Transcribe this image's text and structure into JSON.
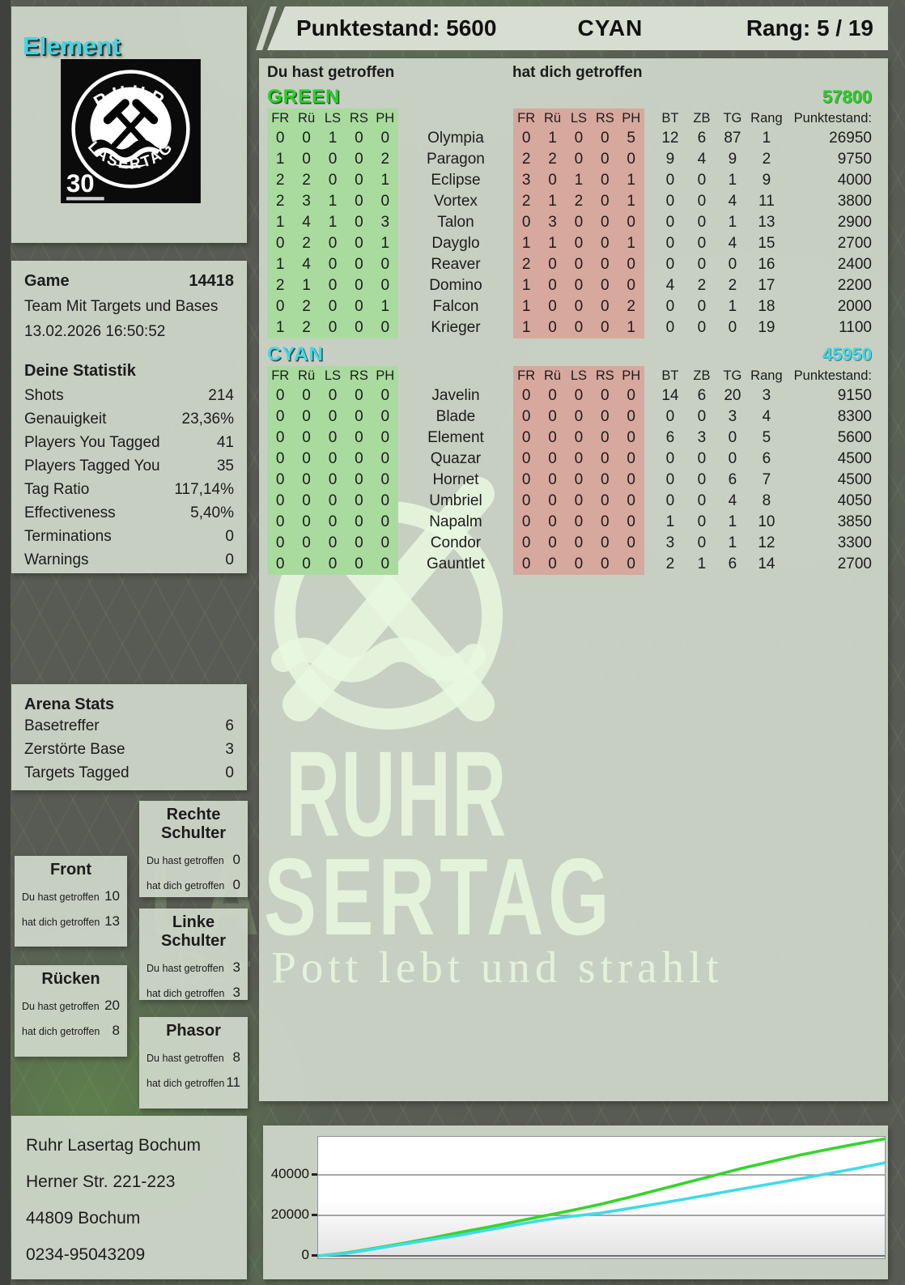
{
  "header": {
    "punktestand_label": "Punktestand:",
    "punktestand_value": "5600",
    "team": "CYAN",
    "rang_label": "Rang:",
    "rang_value": "5 / 19"
  },
  "sidebar": {
    "player_name": "Element",
    "logo": {
      "arc_top": "RUHR",
      "arc_bottom": "LASERTAG",
      "badge": "30"
    },
    "game": {
      "label": "Game",
      "number": "14418",
      "mode": "Team Mit Targets und Bases",
      "datetime": "13.02.2026 16:50:52"
    },
    "stats": {
      "title": "Deine Statistik",
      "rows": [
        {
          "label": "Shots",
          "value": "214"
        },
        {
          "label": "Genauigkeit",
          "value": "23,36%"
        },
        {
          "label": "Players You Tagged",
          "value": "41"
        },
        {
          "label": "Players Tagged You",
          "value": "35"
        },
        {
          "label": "Tag Ratio",
          "value": "117,14%"
        },
        {
          "label": "Effectiveness",
          "value": "5,40%"
        },
        {
          "label": "Terminations",
          "value": "0"
        },
        {
          "label": "Warnings",
          "value": "0"
        }
      ]
    },
    "arena": {
      "title": "Arena Stats",
      "rows": [
        {
          "label": "Basetreffer",
          "value": "6"
        },
        {
          "label": "Zerstörte Base",
          "value": "3"
        },
        {
          "label": "Targets Tagged",
          "value": "0"
        }
      ]
    },
    "body_hit_labels": {
      "you": "Du hast getroffen",
      "them": "hat dich getroffen"
    },
    "body_parts": [
      {
        "id": "front",
        "title": "Front",
        "you": "10",
        "them": "13"
      },
      {
        "id": "ruecken",
        "title": "Rücken",
        "you": "20",
        "them": "8"
      },
      {
        "id": "rechte-schulter",
        "title": "Rechte Schulter",
        "you": "0",
        "them": "0"
      },
      {
        "id": "linke-schulter",
        "title": "Linke Schulter",
        "you": "3",
        "them": "3"
      },
      {
        "id": "phasor",
        "title": "Phasor",
        "you": "8",
        "them": "11"
      }
    ],
    "address": [
      "Ruhr Lasertag Bochum",
      "Herner Str. 221-223",
      "44809 Bochum",
      "0234-95043209"
    ]
  },
  "main": {
    "you_hit_label": "Du hast getroffen",
    "hit_you_label": "hat dich getroffen",
    "col_headers": [
      "FR",
      "Rü",
      "LS",
      "RS",
      "PH"
    ],
    "stat_headers": [
      "BT",
      "ZB",
      "TG",
      "Rang"
    ],
    "punkte_header": "Punktestand:",
    "teams": [
      {
        "name": "GREEN",
        "color": "#24d324",
        "total": "57800",
        "rows": [
          {
            "name": "Olympia",
            "du": [
              0,
              0,
              1,
              0,
              0
            ],
            "hat": [
              0,
              1,
              0,
              0,
              5
            ],
            "bt": 12,
            "zb": 6,
            "tg": 87,
            "rang": 1,
            "punkte": 26950
          },
          {
            "name": "Paragon",
            "du": [
              1,
              0,
              0,
              0,
              2
            ],
            "hat": [
              2,
              2,
              0,
              0,
              0
            ],
            "bt": 9,
            "zb": 4,
            "tg": 9,
            "rang": 2,
            "punkte": 9750
          },
          {
            "name": "Eclipse",
            "du": [
              2,
              2,
              0,
              0,
              1
            ],
            "hat": [
              3,
              0,
              1,
              0,
              1
            ],
            "bt": 0,
            "zb": 0,
            "tg": 1,
            "rang": 9,
            "punkte": 4000
          },
          {
            "name": "Vortex",
            "du": [
              2,
              3,
              1,
              0,
              0
            ],
            "hat": [
              2,
              1,
              2,
              0,
              1
            ],
            "bt": 0,
            "zb": 0,
            "tg": 4,
            "rang": 11,
            "punkte": 3800
          },
          {
            "name": "Talon",
            "du": [
              1,
              4,
              1,
              0,
              3
            ],
            "hat": [
              0,
              3,
              0,
              0,
              0
            ],
            "bt": 0,
            "zb": 0,
            "tg": 1,
            "rang": 13,
            "punkte": 2900
          },
          {
            "name": "Dayglo",
            "du": [
              0,
              2,
              0,
              0,
              1
            ],
            "hat": [
              1,
              1,
              0,
              0,
              1
            ],
            "bt": 0,
            "zb": 0,
            "tg": 4,
            "rang": 15,
            "punkte": 2700
          },
          {
            "name": "Reaver",
            "du": [
              1,
              4,
              0,
              0,
              0
            ],
            "hat": [
              2,
              0,
              0,
              0,
              0
            ],
            "bt": 0,
            "zb": 0,
            "tg": 0,
            "rang": 16,
            "punkte": 2400
          },
          {
            "name": "Domino",
            "du": [
              2,
              1,
              0,
              0,
              0
            ],
            "hat": [
              1,
              0,
              0,
              0,
              0
            ],
            "bt": 4,
            "zb": 2,
            "tg": 2,
            "rang": 17,
            "punkte": 2200
          },
          {
            "name": "Falcon",
            "du": [
              0,
              2,
              0,
              0,
              1
            ],
            "hat": [
              1,
              0,
              0,
              0,
              2
            ],
            "bt": 0,
            "zb": 0,
            "tg": 1,
            "rang": 18,
            "punkte": 2000
          },
          {
            "name": "Krieger",
            "du": [
              1,
              2,
              0,
              0,
              0
            ],
            "hat": [
              1,
              0,
              0,
              0,
              1
            ],
            "bt": 0,
            "zb": 0,
            "tg": 0,
            "rang": 19,
            "punkte": 1100
          }
        ]
      },
      {
        "name": "CYAN",
        "color": "#3cd9ea",
        "total": "45950",
        "rows": [
          {
            "name": "Javelin",
            "du": [
              0,
              0,
              0,
              0,
              0
            ],
            "hat": [
              0,
              0,
              0,
              0,
              0
            ],
            "bt": 14,
            "zb": 6,
            "tg": 20,
            "rang": 3,
            "punkte": 9150
          },
          {
            "name": "Blade",
            "du": [
              0,
              0,
              0,
              0,
              0
            ],
            "hat": [
              0,
              0,
              0,
              0,
              0
            ],
            "bt": 0,
            "zb": 0,
            "tg": 3,
            "rang": 4,
            "punkte": 8300
          },
          {
            "name": "Element",
            "du": [
              0,
              0,
              0,
              0,
              0
            ],
            "hat": [
              0,
              0,
              0,
              0,
              0
            ],
            "bt": 6,
            "zb": 3,
            "tg": 0,
            "rang": 5,
            "punkte": 5600
          },
          {
            "name": "Quazar",
            "du": [
              0,
              0,
              0,
              0,
              0
            ],
            "hat": [
              0,
              0,
              0,
              0,
              0
            ],
            "bt": 0,
            "zb": 0,
            "tg": 0,
            "rang": 6,
            "punkte": 4500
          },
          {
            "name": "Hornet",
            "du": [
              0,
              0,
              0,
              0,
              0
            ],
            "hat": [
              0,
              0,
              0,
              0,
              0
            ],
            "bt": 0,
            "zb": 0,
            "tg": 6,
            "rang": 7,
            "punkte": 4500
          },
          {
            "name": "Umbriel",
            "du": [
              0,
              0,
              0,
              0,
              0
            ],
            "hat": [
              0,
              0,
              0,
              0,
              0
            ],
            "bt": 0,
            "zb": 0,
            "tg": 4,
            "rang": 8,
            "punkte": 4050
          },
          {
            "name": "Napalm",
            "du": [
              0,
              0,
              0,
              0,
              0
            ],
            "hat": [
              0,
              0,
              0,
              0,
              0
            ],
            "bt": 1,
            "zb": 0,
            "tg": 1,
            "rang": 10,
            "punkte": 3850
          },
          {
            "name": "Condor",
            "du": [
              0,
              0,
              0,
              0,
              0
            ],
            "hat": [
              0,
              0,
              0,
              0,
              0
            ],
            "bt": 3,
            "zb": 0,
            "tg": 1,
            "rang": 12,
            "punkte": 3300
          },
          {
            "name": "Gauntlet",
            "du": [
              0,
              0,
              0,
              0,
              0
            ],
            "hat": [
              0,
              0,
              0,
              0,
              0
            ],
            "bt": 2,
            "zb": 1,
            "tg": 6,
            "rang": 14,
            "punkte": 2700
          }
        ]
      }
    ]
  },
  "watermark": {
    "word1": "RUHR",
    "word2": "LASERTAG",
    "slogan": "Der Pott lebt und strahlt"
  },
  "chart_data": {
    "type": "line",
    "title": "",
    "xlabel": "",
    "ylabel": "",
    "yticks": [
      0,
      20000,
      40000
    ],
    "ylim": [
      0,
      60000
    ],
    "grid": true,
    "legend": false,
    "series": [
      {
        "name": "GREEN",
        "color": "#35d42c",
        "values": [
          0,
          1500,
          3800,
          6200,
          8800,
          11600,
          14200,
          17000,
          19800,
          22600,
          25600,
          29000,
          32600,
          36200,
          39800,
          43400,
          46600,
          49800,
          52600,
          55300,
          57800
        ]
      },
      {
        "name": "CYAN",
        "color": "#3fdbe9",
        "values": [
          0,
          1200,
          3500,
          5800,
          8000,
          10200,
          12800,
          15400,
          17800,
          19600,
          21200,
          23500,
          25800,
          28200,
          30700,
          33200,
          35600,
          38100,
          40600,
          43200,
          45950
        ]
      }
    ]
  }
}
